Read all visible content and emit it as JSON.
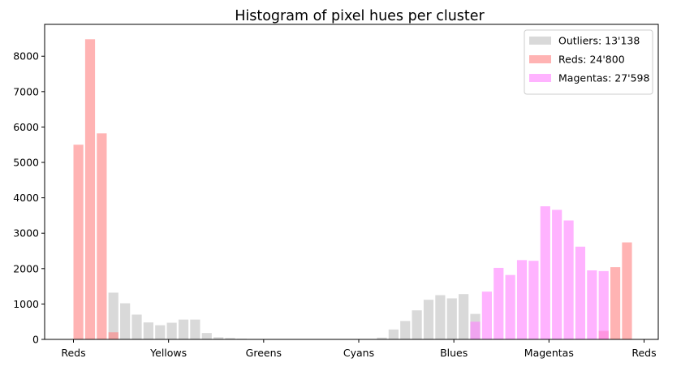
{
  "chart_data": {
    "type": "bar",
    "title": "Histogram of pixel hues per cluster",
    "xlabel": "",
    "ylabel": "",
    "ylim": [
      0,
      8900
    ],
    "yticks": [
      0,
      1000,
      2000,
      3000,
      4000,
      5000,
      6000,
      7000,
      8000
    ],
    "xtick_labels": [
      "Reds",
      "Yellows",
      "Greens",
      "Cyans",
      "Blues",
      "Magentas",
      "Reds"
    ],
    "bins": 48,
    "series": [
      {
        "name": "Outliers: 13'138",
        "color": "#cccccc",
        "values": [
          0,
          0,
          0,
          1320,
          1020,
          700,
          480,
          400,
          470,
          560,
          560,
          180,
          60,
          40,
          20,
          5,
          0,
          0,
          0,
          0,
          0,
          0,
          0,
          0,
          0,
          0,
          50,
          280,
          520,
          820,
          1120,
          1250,
          1160,
          1280,
          720,
          0,
          0,
          0,
          0,
          0,
          0,
          0,
          0,
          0,
          0,
          0,
          0,
          0
        ]
      },
      {
        "name": "Reds: 24'800",
        "color": "#ff8080",
        "values": [
          5500,
          8480,
          5820,
          200,
          0,
          0,
          0,
          0,
          0,
          0,
          0,
          0,
          0,
          0,
          0,
          0,
          0,
          0,
          0,
          0,
          0,
          0,
          0,
          0,
          0,
          0,
          0,
          0,
          0,
          0,
          0,
          0,
          0,
          0,
          0,
          0,
          0,
          0,
          0,
          0,
          0,
          0,
          0,
          0,
          0,
          240,
          2040,
          2740
        ]
      },
      {
        "name": "Magentas: 27'598",
        "color": "#ff80ff",
        "values": [
          0,
          0,
          0,
          0,
          0,
          0,
          0,
          0,
          0,
          0,
          0,
          0,
          0,
          0,
          0,
          0,
          0,
          0,
          0,
          0,
          0,
          0,
          0,
          0,
          0,
          0,
          0,
          0,
          0,
          0,
          0,
          0,
          0,
          0,
          500,
          1350,
          2020,
          1820,
          2240,
          2220,
          3760,
          3660,
          3360,
          2620,
          1950,
          1930,
          0,
          0
        ]
      }
    ],
    "legend_position": "top-right",
    "grid": false
  }
}
